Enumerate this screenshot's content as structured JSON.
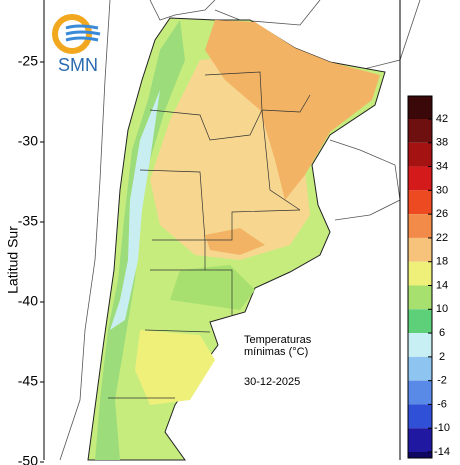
{
  "logo": "SMN",
  "y_axis": {
    "label": "Latitud Sur",
    "ticks": [
      -25,
      -30,
      -35,
      -40,
      -45,
      -50
    ]
  },
  "annotation": {
    "lines": [
      "Temperaturas",
      "mínimas (°C)"
    ],
    "date": "30-12-2025"
  },
  "colorbar": {
    "ticks": [
      42,
      38,
      34,
      30,
      26,
      22,
      18,
      14,
      10,
      6,
      2,
      -2,
      -6,
      -10,
      -14
    ],
    "colors": [
      "#3a0808",
      "#6e1010",
      "#a51212",
      "#d41a1a",
      "#ee4a22",
      "#f28a4a",
      "#f7c27a",
      "#eef07a",
      "#a8e070",
      "#5ed07a",
      "#c8f0f4",
      "#8ec4f0",
      "#5a8ae8",
      "#3050d8",
      "#2018a0",
      "#100860"
    ]
  }
}
